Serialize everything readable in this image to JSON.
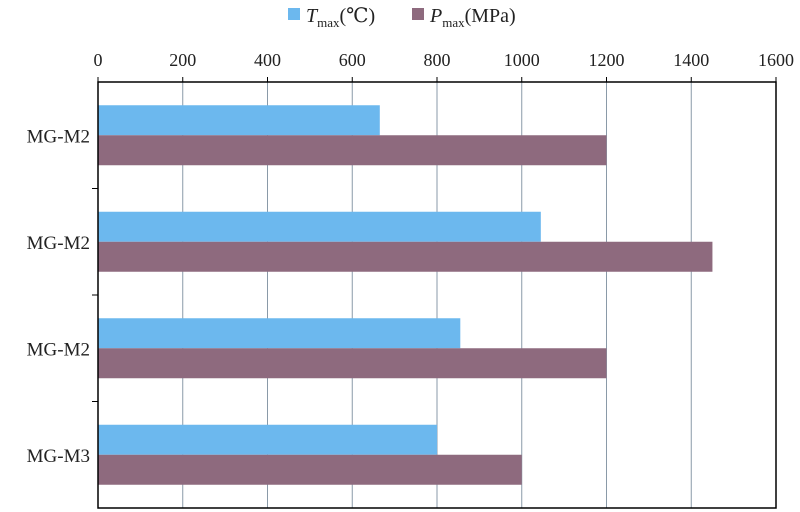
{
  "chart_data": {
    "type": "bar",
    "orientation": "horizontal",
    "categories": [
      "MG-M2",
      "MG-M2",
      "MG-M2",
      "MG-M3"
    ],
    "series": [
      {
        "name": "Tmax(℃)",
        "name_parts": {
          "symbol": "T",
          "sub": "max",
          "unit": "(℃)"
        },
        "values": [
          665,
          1045,
          855,
          800
        ],
        "color": "#6cb8ee"
      },
      {
        "name": "Pmax(MPa)",
        "name_parts": {
          "symbol": "P",
          "sub": "max",
          "unit": "(MPa)"
        },
        "values": [
          1200,
          1450,
          1200,
          1000
        ],
        "color": "#8e6a7e"
      }
    ],
    "xlim": [
      0,
      1600
    ],
    "x_ticks": [
      "0",
      "200",
      "400",
      "600",
      "800",
      "1000",
      "1200",
      "1400",
      "1600"
    ],
    "x_axis_position": "top",
    "grid": true,
    "legend_position": "top-center",
    "title": "",
    "xlabel": "",
    "ylabel": ""
  },
  "colors": {
    "grid": "#8a9aa8",
    "axis": "#000000",
    "frame": "#000000"
  }
}
